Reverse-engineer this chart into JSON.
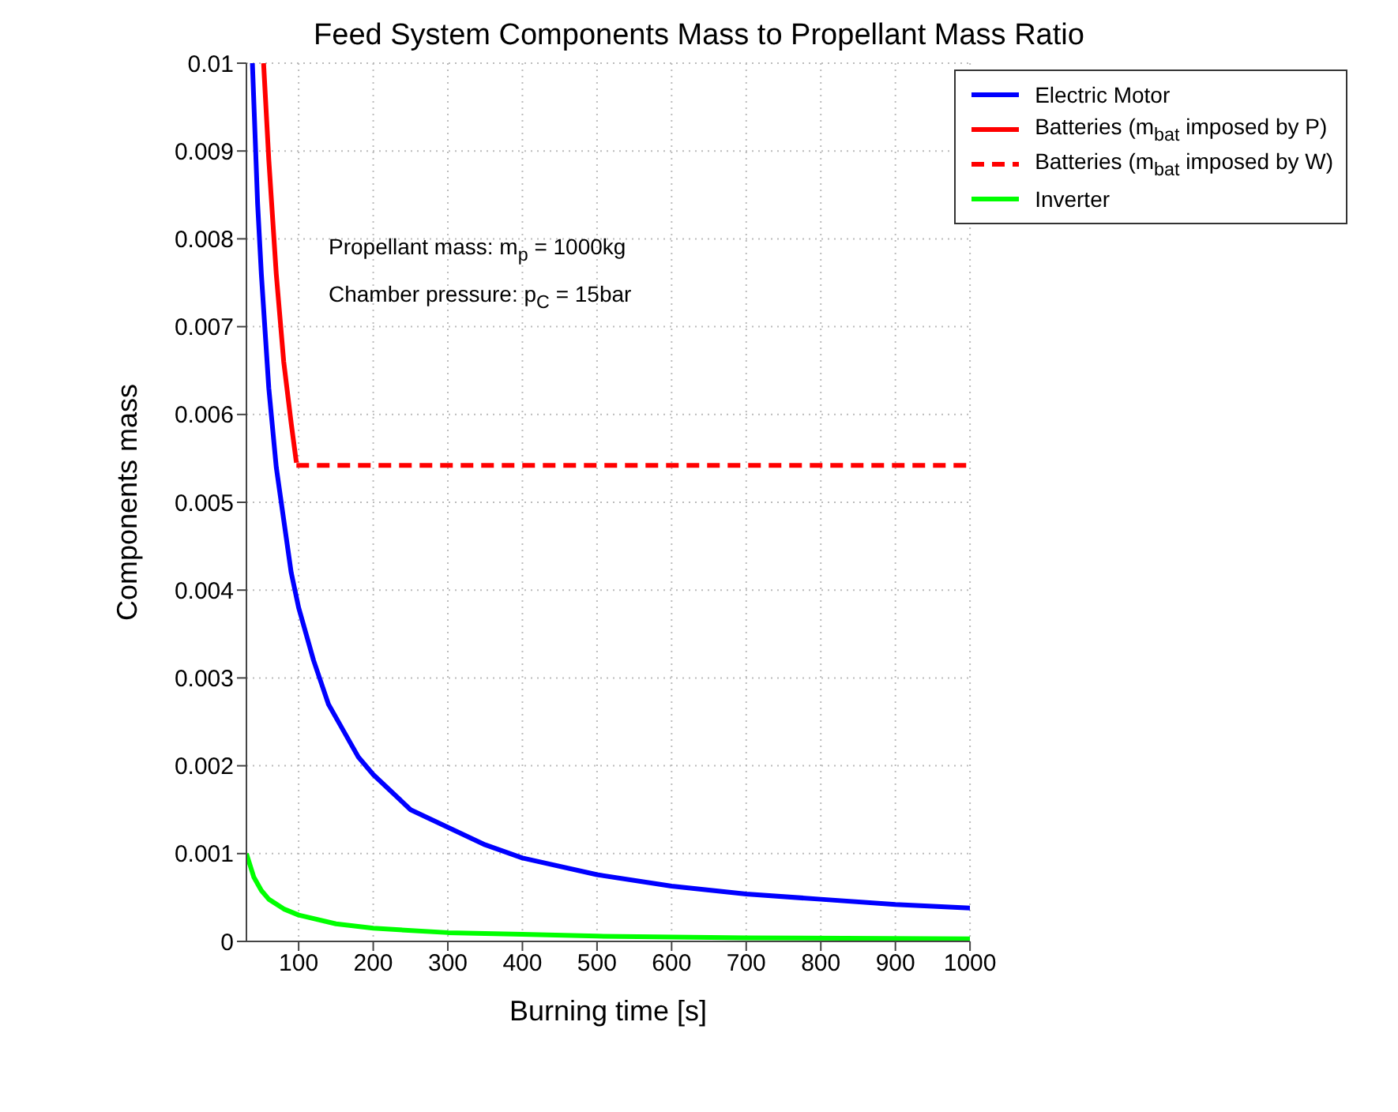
{
  "chart_data": {
    "type": "line",
    "title": "Feed System Components Mass to Propellant Mass Ratio",
    "xlabel": "Burning time [s]",
    "ylabel": "Components mass",
    "xlim": [
      30,
      1000
    ],
    "xticks": [
      100,
      200,
      300,
      400,
      500,
      600,
      700,
      800,
      900,
      1000
    ],
    "ylim": [
      0,
      0.01
    ],
    "yticks": [
      0,
      0.001,
      0.002,
      0.003,
      0.004,
      0.005,
      0.006,
      0.007,
      0.008,
      0.009,
      0.01
    ],
    "grid": true,
    "legend": "top right",
    "annotations": [
      "Propellant mass: m$_{p}$ = 1000kg",
      "Chamber pressure: p$_{C}$ = 15bar"
    ],
    "series": [
      {
        "name": "Electric Motor",
        "color": "#0000ff",
        "line_style": "solid",
        "x": [
          38,
          45,
          50,
          60,
          70,
          80,
          90,
          100,
          120,
          140,
          160,
          180,
          200,
          250,
          300,
          350,
          400,
          500,
          600,
          700,
          800,
          900,
          1000
        ],
        "values": [
          0.01,
          0.0084,
          0.0076,
          0.0063,
          0.0054,
          0.0048,
          0.0042,
          0.0038,
          0.0032,
          0.0027,
          0.0024,
          0.0021,
          0.0019,
          0.0015,
          0.0013,
          0.0011,
          0.00095,
          0.00076,
          0.00063,
          0.00054,
          0.00048,
          0.00042,
          0.00038
        ]
      },
      {
        "name": "Batteries (m$_{bat}$ imposed by P)",
        "color": "#ff0000",
        "line_style": "solid",
        "x": [
          53,
          60,
          70,
          80,
          90,
          97
        ],
        "values": [
          0.01,
          0.0089,
          0.0076,
          0.0066,
          0.0059,
          0.00545
        ]
      },
      {
        "name": "Batteries (m$_{bat}$ imposed by W)",
        "color": "#ff0000",
        "line_style": "dashed",
        "x": [
          97,
          1000
        ],
        "values": [
          0.00542,
          0.00542
        ]
      },
      {
        "name": "Inverter",
        "color": "#00ff00",
        "line_style": "solid",
        "x": [
          30,
          40,
          50,
          60,
          80,
          100,
          150,
          200,
          300,
          400,
          500,
          700,
          1000
        ],
        "values": [
          0.001,
          0.00073,
          0.00058,
          0.00048,
          0.00037,
          0.0003,
          0.0002,
          0.00015,
          0.0001,
          8e-05,
          6e-05,
          4e-05,
          3e-05
        ]
      }
    ]
  }
}
